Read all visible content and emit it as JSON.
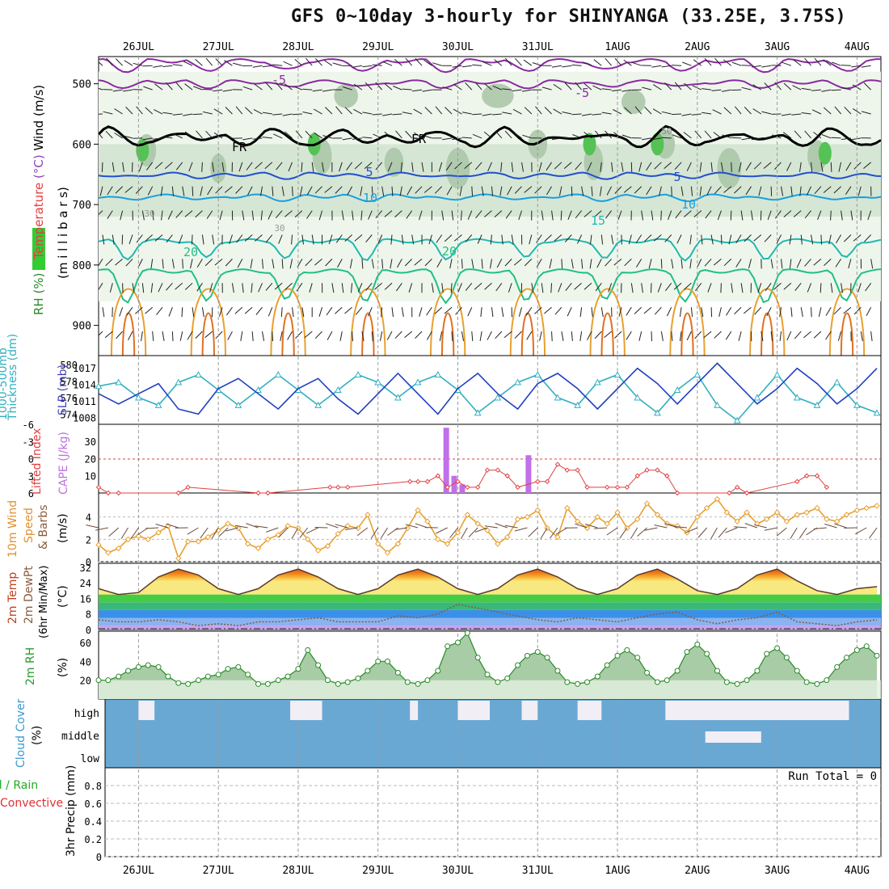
{
  "title": "GFS 0~10day 3-hourly for SHINYANGA (33.25E, 3.75S)",
  "day_labels": [
    "26JUL",
    "27JUL",
    "28JUL",
    "29JUL",
    "30JUL",
    "31JUL",
    "1AUG",
    "2AUG",
    "3AUG",
    "4AUG"
  ],
  "panels": {
    "upper": {
      "ylabel_parts": [
        {
          "text": "RH (%)",
          "color": "#2a8a2a"
        },
        {
          "text": "Temperature",
          "color": "#e04040"
        },
        {
          "text": "(°C)",
          "color": "#9040c0"
        },
        {
          "text": "Wind (m/s)",
          "color": "#000000"
        }
      ],
      "ylabel2": "(m i l l i b a r s)",
      "yticks": [
        "500",
        "600",
        "700",
        "800",
        "900"
      ],
      "contour_labels": [
        "-5",
        "-5",
        "5",
        "5",
        "10",
        "10",
        "15",
        "20",
        "20",
        "FR",
        "FR",
        "50",
        "30",
        "30"
      ]
    },
    "slp": {
      "ylabel_left": "Thickness (dm)",
      "ylabel_left2": "1000-500mb",
      "ylabel_right": "SLP (mb)",
      "yticks_left": [
        "580",
        "578",
        "576",
        "574"
      ],
      "yticks_right": [
        "1017",
        "1014",
        "1011",
        "1008"
      ]
    },
    "cape": {
      "ylabel_left": "Lifted Index",
      "ylabel_right": "CAPE (J/kg)",
      "yticks_left": [
        "-6",
        "-3",
        "0",
        "3",
        "6"
      ],
      "yticks_right": [
        "30",
        "20",
        "10"
      ]
    },
    "wind": {
      "ylabel": [
        "10m Wind",
        "Speed",
        "& Barbs"
      ],
      "unit": "(m/s)",
      "yticks": [
        "4",
        "2",
        "0"
      ]
    },
    "temp": {
      "ylabel": [
        "2m Temp",
        "2m DewPt",
        "(6hr Min/Max)"
      ],
      "unit": "(°C)",
      "yticks": [
        "32",
        "24",
        "16",
        "8",
        "0"
      ]
    },
    "rh": {
      "ylabel": "2m RH",
      "unit": "(%)",
      "yticks": [
        "60",
        "40",
        "20"
      ]
    },
    "cloud": {
      "ylabel": "Cloud Cover",
      "unit": "(%)",
      "levels": [
        "high",
        "middle",
        "low"
      ]
    },
    "precip": {
      "ylabel_total": "Total / Rain",
      "ylabel_conv": "Convective",
      "ylabel_main": "3hr Precip (mm)",
      "yticks": [
        "0.8",
        "0.6",
        "0.4",
        "0.2",
        "0"
      ],
      "run_total": "Run Total = 0"
    }
  },
  "chart_data": [
    {
      "type": "line",
      "name": "slp",
      "x_days": [
        25.5,
        25.75,
        26.0,
        26.25,
        26.5,
        26.75,
        27.0,
        27.25,
        27.5,
        27.75,
        28.0,
        28.25,
        28.5,
        28.75,
        29.0,
        29.25,
        29.5,
        29.75,
        30.0,
        30.25,
        30.5,
        30.75,
        31.0,
        31.25,
        31.5,
        31.75,
        32.0,
        32.25,
        32.5,
        32.75,
        33.0,
        33.25,
        33.5,
        33.75,
        34.0,
        34.25,
        34.5,
        34.75,
        35.0,
        35.25
      ],
      "series": [
        {
          "name": "SLP (mb)",
          "color": "#2040c0",
          "values": [
            1012,
            1010,
            1012,
            1014,
            1009,
            1008,
            1013,
            1015,
            1012,
            1009,
            1013,
            1015,
            1011,
            1008,
            1012,
            1016,
            1012,
            1008,
            1013,
            1016,
            1012,
            1009,
            1014,
            1016,
            1013,
            1009,
            1013,
            1017,
            1014,
            1010,
            1014,
            1018,
            1014,
            1010,
            1013,
            1017,
            1014,
            1010,
            1013,
            1017
          ]
        },
        {
          "name": "Thickness (dm)",
          "color": "#30b0c0",
          "values": [
            577.5,
            578,
            576,
            575,
            578,
            579,
            577,
            575,
            577,
            579,
            577,
            575,
            577,
            579,
            578,
            576,
            578,
            579,
            577,
            574,
            576,
            578,
            579,
            576,
            575,
            578,
            579,
            576,
            574,
            577,
            579,
            575,
            573,
            576,
            579,
            576,
            575,
            578,
            575,
            574
          ]
        }
      ]
    },
    {
      "type": "bar",
      "name": "cape",
      "x_days": [
        29.85,
        29.95,
        30.05,
        30.88
      ],
      "values": [
        38,
        10,
        5,
        22
      ],
      "ylim": [
        0,
        40
      ]
    },
    {
      "type": "line",
      "name": "lifted-index",
      "x_days": [
        25.5,
        25.62,
        25.75,
        26.5,
        26.62,
        27.5,
        27.62,
        28.4,
        28.5,
        28.62,
        29.4,
        29.5,
        29.62,
        29.75,
        29.87,
        30.0,
        30.12,
        30.25,
        30.37,
        30.5,
        30.62,
        30.75,
        31.0,
        31.12,
        31.25,
        31.37,
        31.5,
        31.62,
        31.87,
        32.0,
        32.12,
        32.25,
        32.37,
        32.5,
        32.62,
        32.75,
        33.4,
        33.5,
        33.62,
        34.25,
        34.37,
        34.5,
        34.62
      ],
      "values": [
        5,
        6,
        6,
        6,
        5,
        6,
        6,
        5,
        5,
        5,
        4,
        4,
        4,
        3,
        5,
        4,
        5,
        5,
        2,
        2,
        3,
        5,
        4,
        4,
        1,
        2,
        2,
        5,
        5,
        5,
        5,
        3,
        2,
        2,
        3,
        6,
        6,
        5,
        6,
        4,
        3,
        3,
        5
      ],
      "ylim": [
        6,
        -6
      ]
    },
    {
      "type": "line",
      "name": "wind-speed",
      "x_days": [
        25.5,
        25.62,
        25.75,
        25.87,
        26.0,
        26.12,
        26.25,
        26.37,
        26.5,
        26.62,
        26.75,
        26.87,
        27.0,
        27.12,
        27.25,
        27.37,
        27.5,
        27.62,
        27.75,
        27.87,
        28.0,
        28.12,
        28.25,
        28.37,
        28.5,
        28.62,
        28.75,
        28.87,
        29.0,
        29.12,
        29.25,
        29.37,
        29.5,
        29.62,
        29.75,
        29.87,
        30.0,
        30.12,
        30.25,
        30.37,
        30.5,
        30.62,
        30.75,
        30.87,
        31.0,
        31.12,
        31.25,
        31.37,
        31.5,
        31.62,
        31.75,
        31.87,
        32.0,
        32.12,
        32.25,
        32.37,
        32.5,
        32.62,
        32.75,
        32.87,
        33.0,
        33.12,
        33.25,
        33.37,
        33.5,
        33.62,
        33.75,
        33.87,
        34.0,
        34.12,
        34.25,
        34.37,
        34.5,
        34.62,
        34.75,
        34.87,
        35.0,
        35.12,
        35.25
      ],
      "values": [
        1.5,
        0.8,
        1.2,
        2.0,
        2.3,
        2.0,
        2.6,
        3.2,
        0.3,
        1.8,
        1.8,
        2.2,
        2.8,
        3.4,
        3.0,
        1.6,
        1.2,
        2.0,
        2.4,
        3.2,
        3.0,
        2.0,
        1.0,
        1.4,
        2.5,
        3.2,
        3.0,
        4.2,
        1.6,
        0.8,
        1.6,
        3.0,
        4.6,
        3.6,
        2.0,
        1.6,
        2.6,
        4.2,
        3.4,
        2.8,
        1.6,
        2.2,
        3.8,
        4.0,
        4.6,
        3.0,
        2.2,
        4.8,
        3.6,
        3.0,
        4.0,
        3.4,
        4.4,
        3.0,
        3.8,
        5.2,
        4.2,
        3.4,
        3.2,
        2.6,
        4.0,
        4.8,
        5.6,
        4.4,
        3.6,
        4.4,
        3.4,
        3.8,
        4.4,
        3.6,
        4.2,
        4.4,
        4.8,
        3.8,
        3.6,
        4.2,
        4.6,
        4.8,
        5.0
      ],
      "ylim": [
        0,
        6
      ]
    },
    {
      "type": "area",
      "name": "2m-temp",
      "x_days": [
        25.5,
        25.75,
        26.0,
        26.25,
        26.5,
        26.75,
        27.0,
        27.25,
        27.5,
        27.75,
        28.0,
        28.25,
        28.5,
        28.75,
        29.0,
        29.25,
        29.5,
        29.75,
        30.0,
        30.25,
        30.5,
        30.75,
        31.0,
        31.25,
        31.5,
        31.75,
        32.0,
        32.25,
        32.5,
        32.75,
        33.0,
        33.25,
        33.5,
        33.75,
        34.0,
        34.25,
        34.5,
        34.75,
        35.0,
        35.25
      ],
      "series": [
        {
          "name": "2m Temp",
          "values": [
            21,
            18,
            19,
            27,
            31,
            28,
            21,
            18,
            21,
            28,
            31,
            27,
            21,
            18,
            21,
            28,
            31,
            27,
            21,
            18,
            21,
            28,
            31,
            27,
            21,
            18,
            21,
            28,
            31,
            26,
            20,
            18,
            21,
            28,
            31,
            25,
            20,
            18,
            21,
            22
          ]
        },
        {
          "name": "2m DewPt",
          "values": [
            5,
            4,
            4,
            5,
            4,
            2,
            3,
            2,
            4,
            4,
            5,
            6,
            4,
            4,
            4,
            7,
            6,
            8,
            13,
            11,
            9,
            7,
            5,
            4,
            6,
            5,
            4,
            6,
            8,
            9,
            5,
            3,
            5,
            6,
            9,
            4,
            3,
            2,
            4,
            5
          ]
        }
      ],
      "ylim": [
        0,
        34
      ]
    },
    {
      "type": "area",
      "name": "2m-rh",
      "x_days": [
        25.5,
        25.62,
        25.75,
        25.87,
        26.0,
        26.12,
        26.25,
        26.37,
        26.5,
        26.62,
        26.75,
        26.87,
        27.0,
        27.12,
        27.25,
        27.37,
        27.5,
        27.62,
        27.75,
        27.87,
        28.0,
        28.12,
        28.25,
        28.37,
        28.5,
        28.62,
        28.75,
        28.87,
        29.0,
        29.12,
        29.25,
        29.37,
        29.5,
        29.62,
        29.75,
        29.87,
        30.0,
        30.12,
        30.25,
        30.37,
        30.5,
        30.62,
        30.75,
        30.87,
        31.0,
        31.12,
        31.25,
        31.37,
        31.5,
        31.62,
        31.75,
        31.87,
        32.0,
        32.12,
        32.25,
        32.37,
        32.5,
        32.62,
        32.75,
        32.87,
        33.0,
        33.12,
        33.25,
        33.37,
        33.5,
        33.62,
        33.75,
        33.87,
        34.0,
        34.12,
        34.25,
        34.37,
        34.5,
        34.62,
        34.75,
        34.87,
        35.0,
        35.12,
        35.25
      ],
      "values": [
        20,
        20,
        24,
        30,
        34,
        36,
        34,
        24,
        17,
        16,
        20,
        24,
        26,
        32,
        34,
        26,
        16,
        16,
        20,
        24,
        32,
        52,
        36,
        20,
        16,
        18,
        22,
        30,
        40,
        40,
        28,
        18,
        16,
        20,
        30,
        56,
        60,
        70,
        44,
        26,
        18,
        22,
        36,
        46,
        50,
        44,
        30,
        18,
        16,
        18,
        24,
        36,
        46,
        52,
        44,
        28,
        18,
        20,
        30,
        50,
        58,
        48,
        30,
        18,
        16,
        20,
        30,
        48,
        54,
        44,
        30,
        18,
        16,
        20,
        34,
        44,
        52,
        56,
        46
      ],
      "ylim": [
        0,
        72
      ]
    },
    {
      "type": "bar",
      "name": "3hr-precip",
      "x_days": [],
      "values": [],
      "ylim": [
        0,
        1
      ]
    }
  ]
}
